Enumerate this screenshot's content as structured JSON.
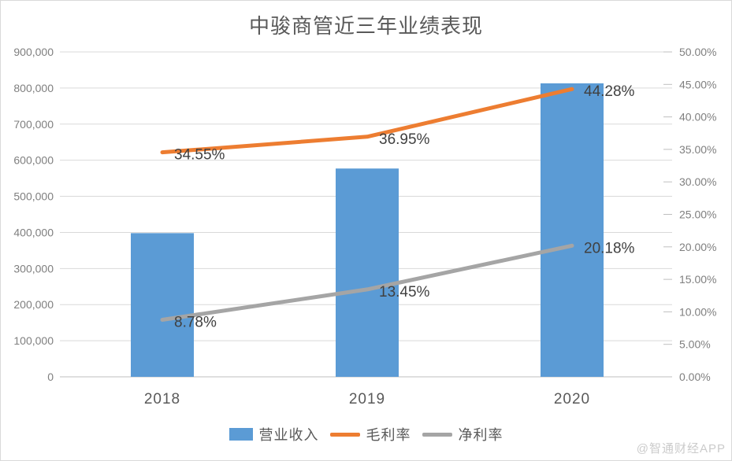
{
  "title": "中骏商管近三年业绩表现",
  "watermark": "@智通财经APP",
  "colors": {
    "bar": "#5B9BD5",
    "gross_margin_line": "#ED7D31",
    "net_margin_line": "#A5A5A5",
    "gridline": "#D9D9D9",
    "axis_line": "#BFBFBF",
    "axis_tick_text": "#7F7F7F",
    "category_text": "#595959",
    "data_label_text": "#404040",
    "title_text": "#595959",
    "watermark_text": "#CBCBCB"
  },
  "chart_data": {
    "type": "bar",
    "subtype": "combo-bar-line",
    "title": "中骏商管近三年业绩表现",
    "categories": [
      "2018",
      "2019",
      "2020"
    ],
    "series": [
      {
        "name": "营业收入",
        "chart": "bar",
        "axis": "left",
        "color": "#5B9BD5",
        "values": [
          398000,
          577000,
          813000
        ]
      },
      {
        "name": "毛利率",
        "chart": "line",
        "axis": "right",
        "color": "#ED7D31",
        "values": [
          34.55,
          36.95,
          44.28
        ],
        "point_labels": [
          "34.55%",
          "36.95%",
          "44.28%"
        ]
      },
      {
        "name": "净利率",
        "chart": "line",
        "axis": "right",
        "color": "#A5A5A5",
        "values": [
          8.78,
          13.45,
          20.18
        ],
        "point_labels": [
          "8.78%",
          "13.45%",
          "20.18%"
        ]
      }
    ],
    "left_axis": {
      "min": 0,
      "max": 900000,
      "step": 100000,
      "tick_labels": [
        "900,000",
        "800,000",
        "700,000",
        "600,000",
        "500,000",
        "400,000",
        "300,000",
        "200,000",
        "100,000",
        "0"
      ]
    },
    "right_axis": {
      "min": 0,
      "max": 50,
      "step": 5,
      "tick_labels": [
        "50.00%",
        "45.00%",
        "40.00%",
        "35.00%",
        "30.00%",
        "25.00%",
        "20.00%",
        "15.00%",
        "10.00%",
        "5.00%",
        "0.00%"
      ]
    },
    "legend": {
      "position": "bottom",
      "items": [
        "营业收入",
        "毛利率",
        "净利率"
      ]
    },
    "grid": true,
    "xlabel": "",
    "ylabel": ""
  }
}
